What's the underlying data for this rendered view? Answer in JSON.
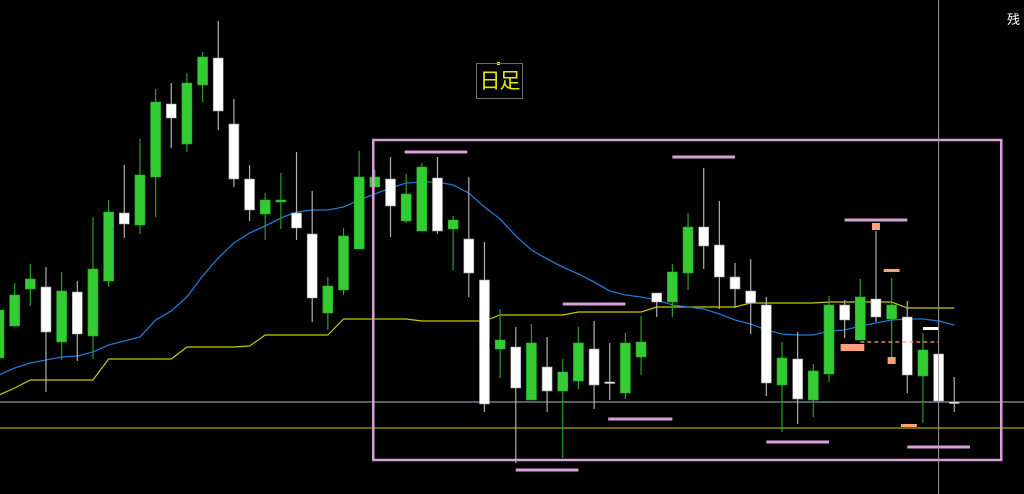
{
  "timeframe_label": "日足",
  "corner_label": "残",
  "colors": {
    "up": "#33cc33",
    "down": "#ffffff",
    "up_wick": "#2c9c2c",
    "down_wick": "#b0b0b0",
    "ma": "#1e78d0",
    "step_line": "#c8c800",
    "box": "#d8a0d8",
    "marker": "#ff9f7a",
    "hline_gray": "#8a96a6",
    "hline_yellow": "#a8a800",
    "crosshair": "#9a9a9a"
  },
  "chart_data": {
    "type": "candlestick",
    "title": "",
    "grid": false,
    "ohlc": [
      [
        136,
        194,
        136,
        184
      ],
      [
        168,
        211,
        167,
        199
      ],
      [
        205,
        230,
        188,
        215
      ],
      [
        207,
        227,
        102,
        162
      ],
      [
        152,
        222,
        134,
        203
      ],
      [
        202,
        213,
        133,
        160
      ],
      [
        158,
        277,
        135,
        225
      ],
      [
        213,
        294,
        207,
        282
      ],
      [
        281,
        329,
        256,
        270
      ],
      [
        269,
        355,
        260,
        319
      ],
      [
        317,
        405,
        277,
        392
      ],
      [
        390,
        411,
        346,
        376
      ],
      [
        350,
        421,
        342,
        411
      ],
      [
        409,
        442,
        392,
        437
      ],
      [
        436,
        473,
        364,
        383
      ],
      [
        370,
        395,
        307,
        315
      ],
      [
        315,
        329,
        273,
        284
      ],
      [
        280,
        301,
        254,
        294
      ],
      [
        292,
        321,
        265,
        294
      ],
      [
        281,
        342,
        254,
        266
      ],
      [
        260,
        303,
        172,
        196
      ],
      [
        181,
        217,
        164,
        208
      ],
      [
        204,
        266,
        199,
        258
      ],
      [
        245,
        343,
        245,
        317
      ],
      [
        307,
        324,
        307,
        317
      ],
      [
        315,
        337,
        257,
        288
      ],
      [
        273,
        320,
        271,
        300
      ],
      [
        263,
        331,
        263,
        327
      ],
      [
        316,
        337,
        260,
        263
      ],
      [
        265,
        278,
        224,
        274
      ],
      [
        255,
        317,
        197,
        221
      ],
      [
        214,
        252,
        82,
        90
      ],
      [
        145,
        185,
        116,
        154
      ],
      [
        147,
        167,
        31,
        106
      ],
      [
        94,
        170,
        94,
        151
      ],
      [
        127,
        157,
        82,
        103
      ],
      [
        103,
        135,
        36,
        122
      ],
      [
        113,
        167,
        105,
        151
      ],
      [
        145,
        173,
        85,
        109
      ],
      [
        112,
        151,
        94,
        112
      ],
      [
        101,
        161,
        95,
        151
      ],
      [
        137,
        178,
        119,
        152
      ],
      [
        201,
        201,
        177,
        192
      ],
      [
        192,
        230,
        177,
        222
      ],
      [
        221,
        281,
        204,
        267
      ],
      [
        267,
        326,
        225,
        248
      ],
      [
        249,
        293,
        185,
        217
      ],
      [
        217,
        231,
        186,
        205
      ],
      [
        203,
        235,
        160,
        191
      ],
      [
        189,
        197,
        98,
        111
      ],
      [
        109,
        152,
        62,
        136
      ],
      [
        135,
        162,
        70,
        95
      ],
      [
        94,
        130,
        77,
        123
      ],
      [
        120,
        198,
        112,
        189
      ],
      [
        189,
        194,
        156,
        174
      ],
      [
        154,
        215,
        154,
        197
      ],
      [
        195,
        263,
        172,
        177
      ],
      [
        175,
        216,
        137,
        189
      ],
      [
        177,
        193,
        101,
        119
      ],
      [
        118,
        161,
        71,
        144
      ],
      [
        140,
        140,
        93,
        93
      ],
      [
        92,
        117,
        82,
        92
      ]
    ],
    "moving_average": [
      119,
      126,
      131,
      134,
      137,
      138,
      142,
      149,
      153,
      157,
      174,
      183,
      197,
      218,
      236,
      251,
      261,
      268,
      276,
      282,
      284,
      284,
      287,
      294,
      300,
      306,
      311,
      312,
      312,
      309,
      301,
      287,
      275,
      258,
      244,
      235,
      227,
      220,
      212,
      203,
      199,
      197,
      194,
      189,
      187,
      185,
      180,
      174,
      170,
      164,
      160,
      159,
      159,
      163,
      164,
      168,
      171,
      174,
      175,
      175,
      173,
      169
    ],
    "step_line": [
      99,
      106,
      114,
      114,
      114,
      114,
      114,
      135,
      135,
      135,
      135,
      135,
      147,
      147,
      147,
      147,
      148,
      159,
      159,
      159,
      159,
      159,
      175,
      175,
      175,
      175,
      175,
      173,
      173,
      173,
      173,
      173,
      179,
      179,
      179,
      179,
      179,
      182,
      182,
      182,
      182,
      182,
      187,
      187,
      187,
      187,
      187,
      187,
      191,
      191,
      191,
      191,
      191,
      192,
      192,
      192,
      192,
      192,
      186,
      186,
      186,
      186
    ],
    "horizontal_levels": [
      {
        "value": 92,
        "color": "gray"
      },
      {
        "value": 66,
        "color": "yellow"
      }
    ],
    "crosshair_index": 60,
    "box_range": {
      "from_index": 23.9,
      "to_index": 64,
      "high": 354,
      "low": 34
    },
    "box_segments": [
      [
        25.9,
        29.9,
        342
      ],
      [
        43,
        47,
        337
      ],
      [
        36,
        40,
        190
      ],
      [
        38.9,
        43,
        75
      ],
      [
        33,
        37,
        24
      ],
      [
        49,
        53,
        52
      ],
      [
        54,
        58,
        274
      ],
      [
        58,
        62,
        47
      ]
    ],
    "markers": [
      [
        56,
        268
      ],
      [
        57,
        222
      ],
      [
        54,
        147
      ],
      [
        54.5,
        147
      ],
      [
        55,
        147
      ],
      [
        57,
        134
      ],
      [
        58.1,
        67
      ]
    ],
    "ylim": [
      0,
      494
    ]
  }
}
